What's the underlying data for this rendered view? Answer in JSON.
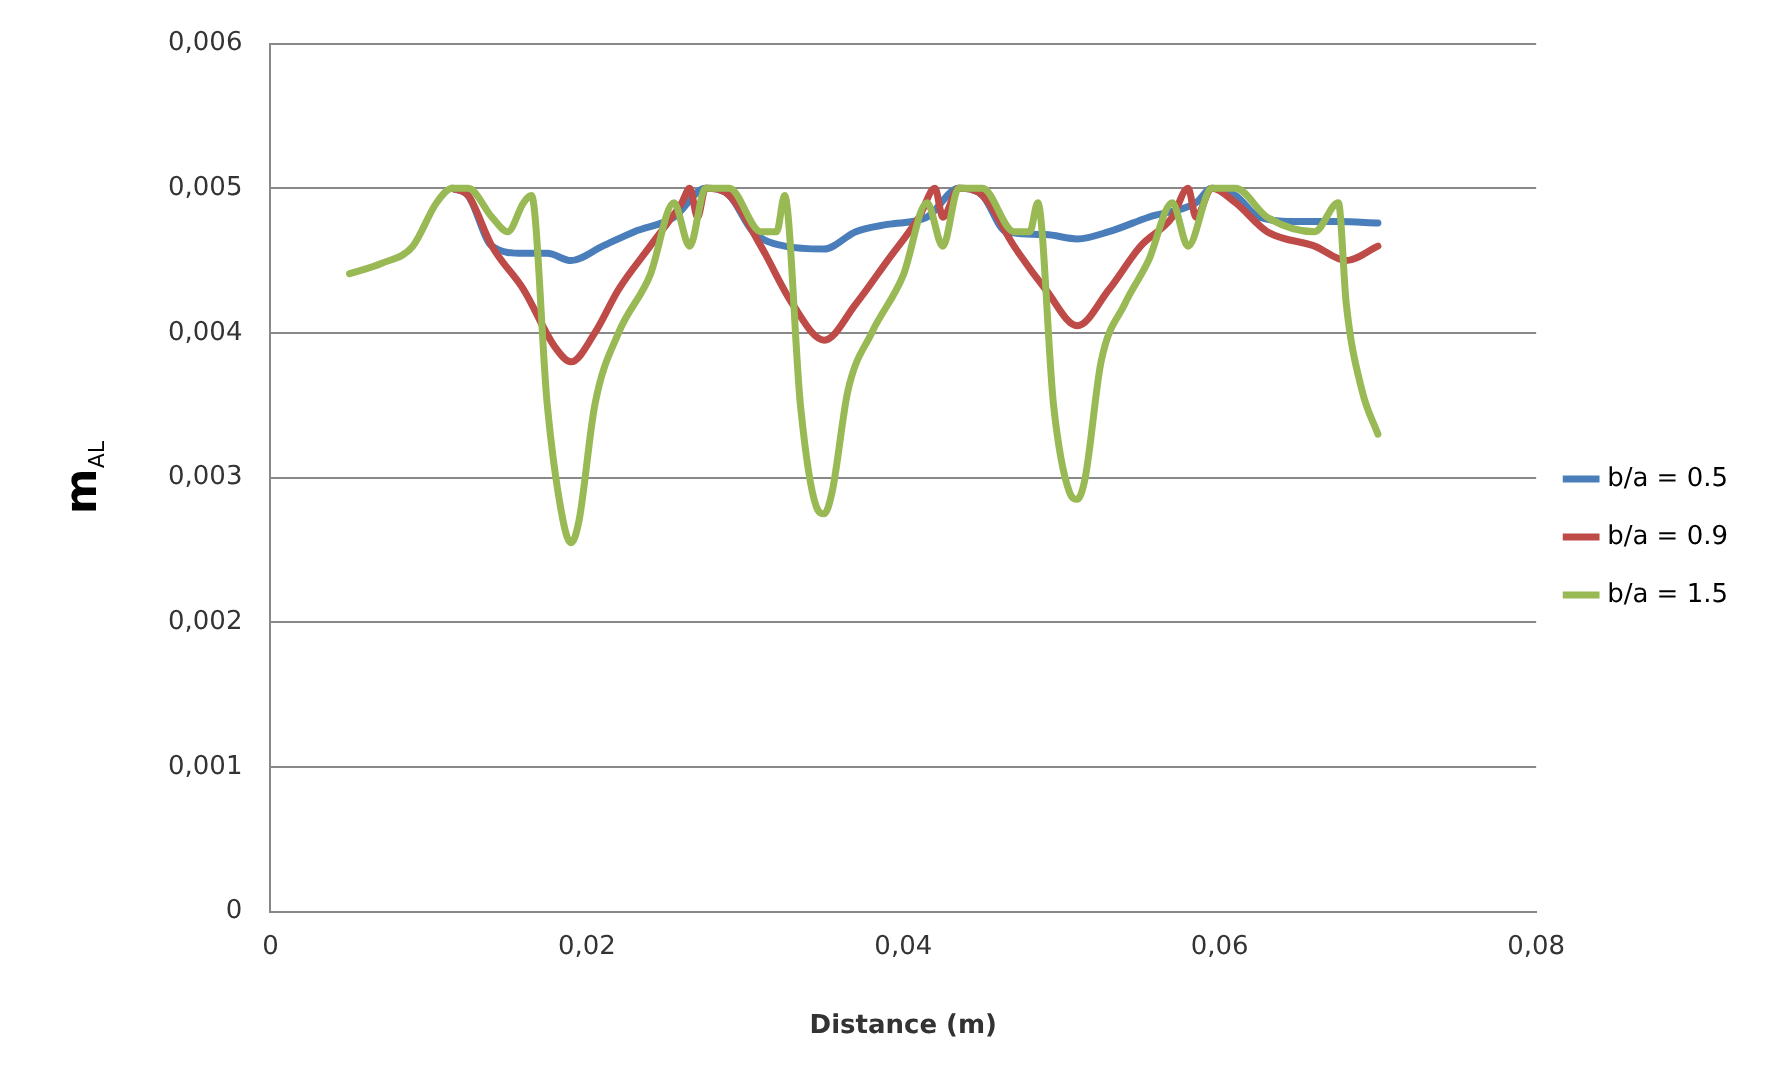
{
  "chart_data": {
    "type": "line",
    "xlabel": "Distance (m)",
    "ylabel": "m$_{AL}$",
    "xlim": [
      0,
      0.08
    ],
    "xticks": [
      {
        "value": 0,
        "label": "0"
      },
      {
        "value": 0.02,
        "label": "0,02"
      },
      {
        "value": 0.04,
        "label": "0,04"
      },
      {
        "value": 0.06,
        "label": "0,06"
      },
      {
        "value": 0.08,
        "label": "0,08"
      }
    ],
    "ylim": [
      0,
      0.006
    ],
    "yticks": [
      {
        "value": 0,
        "label": "0"
      },
      {
        "value": 0.001,
        "label": "0,001"
      },
      {
        "value": 0.002,
        "label": "0,002"
      },
      {
        "value": 0.003,
        "label": "0,003"
      },
      {
        "value": 0.004,
        "label": "0,004"
      },
      {
        "value": 0.005,
        "label": "0,005"
      },
      {
        "value": 0.006,
        "label": "0,006"
      }
    ],
    "grid": "y",
    "legend": "right",
    "marker": "none",
    "line_style": "solid",
    "series": [
      {
        "name": "b/a = 0.5",
        "color": "#4a7ebb",
        "x": [
          0.0115,
          0.0125,
          0.014,
          0.016,
          0.0175,
          0.019,
          0.021,
          0.023,
          0.0255,
          0.0275,
          0.029,
          0.0305,
          0.0325,
          0.035,
          0.037,
          0.039,
          0.0415,
          0.0435,
          0.045,
          0.0465,
          0.049,
          0.051,
          0.053,
          0.0555,
          0.0585,
          0.0595,
          0.061,
          0.0625,
          0.065,
          0.0675,
          0.07
        ],
        "values": [
          0.005,
          0.00495,
          0.0046,
          0.00455,
          0.00455,
          0.0045,
          0.0046,
          0.0047,
          0.0048,
          0.005,
          0.00495,
          0.0047,
          0.0046,
          0.00458,
          0.0047,
          0.00475,
          0.0048,
          0.005,
          0.00495,
          0.0047,
          0.00468,
          0.00465,
          0.0047,
          0.0048,
          0.0049,
          0.005,
          0.00495,
          0.0048,
          0.00477,
          0.00477,
          0.00476
        ]
      },
      {
        "name": "b/a = 0.9",
        "color": "#be4b48",
        "x": [
          0.0115,
          0.0125,
          0.014,
          0.016,
          0.018,
          0.019,
          0.0205,
          0.022,
          0.024,
          0.026,
          0.0265,
          0.027,
          0.0275,
          0.029,
          0.031,
          0.033,
          0.035,
          0.037,
          0.039,
          0.041,
          0.042,
          0.0425,
          0.0435,
          0.045,
          0.047,
          0.049,
          0.051,
          0.053,
          0.055,
          0.057,
          0.058,
          0.0585,
          0.0595,
          0.061,
          0.063,
          0.066,
          0.068,
          0.07
        ],
        "values": [
          0.005,
          0.00495,
          0.0046,
          0.0043,
          0.0039,
          0.0038,
          0.004,
          0.0043,
          0.0046,
          0.0049,
          0.005,
          0.0048,
          0.005,
          0.00495,
          0.0046,
          0.0042,
          0.00395,
          0.0042,
          0.0045,
          0.0048,
          0.005,
          0.0048,
          0.005,
          0.00495,
          0.0046,
          0.0043,
          0.00405,
          0.0043,
          0.0046,
          0.0048,
          0.005,
          0.0048,
          0.005,
          0.0049,
          0.0047,
          0.0046,
          0.0045,
          0.0046
        ]
      },
      {
        "name": "b/a = 1.5",
        "color": "#98b954",
        "x": [
          0.005,
          0.007,
          0.009,
          0.0105,
          0.0115,
          0.0125,
          0.014,
          0.015,
          0.016,
          0.0165,
          0.0175,
          0.0185,
          0.019,
          0.0195,
          0.0205,
          0.022,
          0.024,
          0.0255,
          0.0265,
          0.0275,
          0.029,
          0.031,
          0.032,
          0.0325,
          0.0335,
          0.0345,
          0.035,
          0.0355,
          0.0365,
          0.038,
          0.04,
          0.0415,
          0.0425,
          0.0435,
          0.045,
          0.047,
          0.048,
          0.0485,
          0.0495,
          0.0505,
          0.051,
          0.0515,
          0.0525,
          0.054,
          0.0555,
          0.057,
          0.058,
          0.0595,
          0.061,
          0.063,
          0.066,
          0.0675,
          0.068,
          0.069,
          0.07
        ],
        "values": [
          0.00441,
          0.00448,
          0.0046,
          0.0049,
          0.005,
          0.005,
          0.0048,
          0.0047,
          0.0049,
          0.00495,
          0.0035,
          0.0027,
          0.00255,
          0.0027,
          0.0035,
          0.004,
          0.0044,
          0.0049,
          0.0046,
          0.005,
          0.005,
          0.0047,
          0.0047,
          0.00495,
          0.0035,
          0.0028,
          0.00275,
          0.0029,
          0.0036,
          0.004,
          0.0044,
          0.0049,
          0.0046,
          0.005,
          0.005,
          0.0047,
          0.0047,
          0.0049,
          0.0035,
          0.0029,
          0.00285,
          0.003,
          0.0038,
          0.0042,
          0.0045,
          0.0049,
          0.0046,
          0.005,
          0.005,
          0.0048,
          0.0047,
          0.0049,
          0.0042,
          0.0036,
          0.0033
        ]
      }
    ]
  }
}
